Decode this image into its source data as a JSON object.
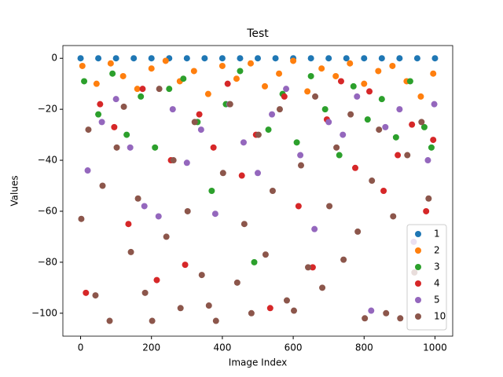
{
  "chart_data": {
    "type": "scatter",
    "title": "Test",
    "x_label": "Image Index",
    "y_label": "Values",
    "xlim": [
      -50,
      1050
    ],
    "ylim": [
      -109,
      5
    ],
    "xticks": [
      0,
      200,
      400,
      600,
      800,
      1000
    ],
    "yticks": [
      0,
      {
        "value": -20,
        "label": "−20"
      },
      {
        "value": -40,
        "label": "−40"
      },
      {
        "value": -60,
        "label": "−60"
      },
      {
        "value": -80,
        "label": "−80"
      },
      {
        "value": -100,
        "label": "−100"
      }
    ],
    "legend": "lower right",
    "series": [
      {
        "name": "1",
        "color": "#1f77b4",
        "x": [
          0,
          50,
          100,
          150,
          200,
          250,
          300,
          350,
          400,
          450,
          500,
          550,
          600,
          650,
          700,
          750,
          800,
          850,
          900,
          950,
          1000
        ],
        "values": [
          0,
          0,
          0,
          0,
          0,
          0,
          0,
          0,
          0,
          0,
          0,
          0,
          0,
          0,
          0,
          0,
          0,
          0,
          0,
          0,
          0
        ]
      },
      {
        "name": "2",
        "color": "#ff7f0e",
        "x": [
          5,
          45,
          85,
          120,
          160,
          200,
          240,
          280,
          320,
          360,
          400,
          440,
          480,
          520,
          560,
          600,
          640,
          680,
          720,
          760,
          800,
          840,
          880,
          920,
          960,
          995
        ],
        "values": [
          -3,
          -10,
          -2,
          -7,
          -12,
          -4,
          -1,
          -9,
          -5,
          -14,
          -3,
          -8,
          -2,
          -11,
          -6,
          -1,
          -13,
          -4,
          -7,
          -2,
          -10,
          -5,
          -3,
          -9,
          -15,
          -6
        ]
      },
      {
        "name": "3",
        "color": "#2ca02c",
        "x": [
          10,
          50,
          90,
          130,
          170,
          210,
          250,
          290,
          330,
          370,
          410,
          450,
          490,
          530,
          570,
          610,
          650,
          690,
          730,
          770,
          810,
          850,
          890,
          930,
          970,
          990
        ],
        "values": [
          -9,
          -22,
          -6,
          -30,
          -15,
          -35,
          -12,
          -8,
          -25,
          -52,
          -18,
          -5,
          -80,
          -28,
          -14,
          -33,
          -7,
          -20,
          -38,
          -11,
          -24,
          -16,
          -31,
          -9,
          -27,
          -35
        ]
      },
      {
        "name": "4",
        "color": "#d62728",
        "x": [
          15,
          55,
          95,
          135,
          175,
          215,
          255,
          295,
          335,
          375,
          415,
          455,
          495,
          535,
          575,
          615,
          655,
          695,
          735,
          775,
          815,
          855,
          895,
          935,
          975,
          995
        ],
        "values": [
          -92,
          -18,
          -27,
          -65,
          -12,
          -87,
          -40,
          -81,
          -22,
          -35,
          -10,
          -46,
          -30,
          -98,
          -15,
          -58,
          -82,
          -24,
          -9,
          -43,
          -13,
          -52,
          -38,
          -26,
          -60,
          -32
        ]
      },
      {
        "name": "5",
        "color": "#9467bd",
        "x": [
          20,
          60,
          100,
          140,
          180,
          220,
          260,
          300,
          340,
          380,
          420,
          460,
          500,
          540,
          580,
          620,
          660,
          700,
          740,
          780,
          820,
          860,
          900,
          940,
          980,
          998
        ],
        "values": [
          -44,
          -25,
          -16,
          -35,
          -58,
          -62,
          -20,
          -41,
          -28,
          -61,
          -18,
          -33,
          -45,
          -22,
          -12,
          -38,
          -67,
          -25,
          -30,
          -15,
          -99,
          -27,
          -20,
          -72,
          -40,
          -18
        ]
      },
      {
        "name": "10",
        "color": "#8c564b",
        "x": [
          2,
          22,
          42,
          62,
          82,
          102,
          122,
          142,
          162,
          182,
          202,
          222,
          242,
          262,
          282,
          302,
          322,
          342,
          362,
          382,
          402,
          422,
          442,
          462,
          482,
          502,
          522,
          542,
          562,
          582,
          602,
          622,
          642,
          662,
          682,
          702,
          722,
          742,
          762,
          782,
          802,
          822,
          842,
          862,
          882,
          902,
          922,
          942,
          962,
          982
        ],
        "values": [
          -63,
          -28,
          -93,
          -50,
          -103,
          -35,
          -19,
          -76,
          -55,
          -92,
          -103,
          -12,
          -70,
          -40,
          -98,
          -60,
          -25,
          -85,
          -97,
          -103,
          -45,
          -18,
          -88,
          -65,
          -100,
          -30,
          -77,
          -52,
          -20,
          -95,
          -99,
          -42,
          -82,
          -15,
          -90,
          -58,
          -35,
          -79,
          -22,
          -68,
          -102,
          -48,
          -28,
          -100,
          -62,
          -102,
          -38,
          -84,
          -25,
          -55
        ]
      }
    ]
  }
}
